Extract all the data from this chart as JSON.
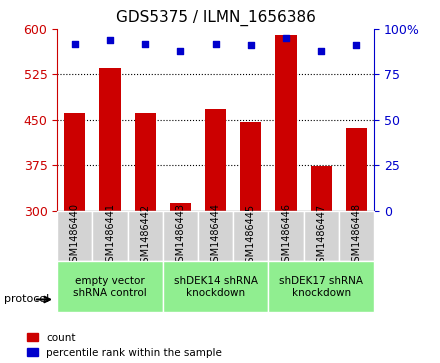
{
  "title": "GDS5375 / ILMN_1656386",
  "samples": [
    "GSM1486440",
    "GSM1486441",
    "GSM1486442",
    "GSM1486443",
    "GSM1486444",
    "GSM1486445",
    "GSM1486446",
    "GSM1486447",
    "GSM1486448"
  ],
  "counts": [
    462,
    535,
    462,
    312,
    468,
    447,
    590,
    373,
    437
  ],
  "percentiles": [
    92,
    94,
    92,
    88,
    92,
    91,
    95,
    88,
    91
  ],
  "ylim_left": [
    300,
    600
  ],
  "ylim_right": [
    0,
    100
  ],
  "yticks_left": [
    300,
    375,
    450,
    525,
    600
  ],
  "yticks_right": [
    0,
    25,
    50,
    75,
    100
  ],
  "ytick_labels_right": [
    "0",
    "25",
    "50",
    "75",
    "100%"
  ],
  "bar_color": "#cc0000",
  "dot_color": "#0000cc",
  "grid_color": "#000000",
  "protocol_groups": [
    {
      "label": "empty vector\nshRNA control",
      "start": 0,
      "end": 3,
      "color": "#90ee90"
    },
    {
      "label": "shDEK14 shRNA\nknockdown",
      "start": 3,
      "end": 6,
      "color": "#90ee90"
    },
    {
      "label": "shDEK17 shRNA\nknockdown",
      "start": 6,
      "end": 9,
      "color": "#90ee90"
    }
  ],
  "legend_count_label": "count",
  "legend_percentile_label": "percentile rank within the sample",
  "protocol_label": "protocol",
  "bar_width": 0.6,
  "tick_label_color_left": "#cc0000",
  "tick_label_color_right": "#0000cc"
}
